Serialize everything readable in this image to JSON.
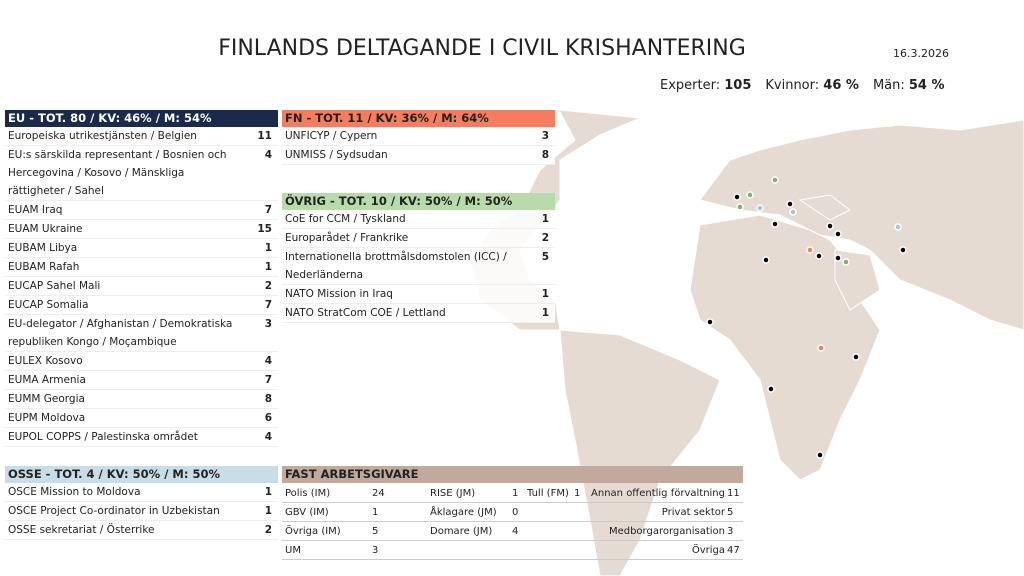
{
  "header": {
    "title": "FINLANDS DELTAGANDE I CIVIL KRISHANTERING",
    "date": "16.3.2026"
  },
  "stats": [
    {
      "label": "Experter:",
      "value": "105"
    },
    {
      "label": "Kvinnor:",
      "value": "46 %"
    },
    {
      "label": "Män:",
      "value": "54 %"
    }
  ],
  "sections": {
    "eu": {
      "title": "EU - TOT. 80 / KV: 46% / M: 54%",
      "rows": [
        [
          "Europeiska utrikestjänsten / Belgien",
          11
        ],
        [
          "EU:s särskilda representant / Bosnien och Hercegovina / Kosovo / Mänskliga rättigheter / Sahel",
          4
        ],
        [
          "EUAM Iraq",
          7
        ],
        [
          "EUAM Ukraine",
          15
        ],
        [
          "EUBAM Libya",
          1
        ],
        [
          "EUBAM Rafah",
          1
        ],
        [
          "EUCAP Sahel Mali",
          2
        ],
        [
          "EUCAP Somalia",
          7
        ],
        [
          "EU-delegator / Afghanistan / Demokratiska republiken Kongo / Moçambique",
          3
        ],
        [
          "EULEX Kosovo",
          4
        ],
        [
          "EUMA Armenia",
          7
        ],
        [
          "EUMM Georgia",
          8
        ],
        [
          "EUPM Moldova",
          6
        ],
        [
          "EUPOL COPPS / Palestinska området",
          4
        ]
      ]
    },
    "fn": {
      "title": "FN - TOT. 11 / KV: 36% / M: 64%",
      "rows": [
        [
          "UNFICYP / Cypern",
          3
        ],
        [
          "UNMISS / Sydsudan",
          8
        ]
      ]
    },
    "ovrig": {
      "title": "ÖVRIG - TOT. 10 / KV: 50% / M: 50%",
      "rows": [
        [
          "CoE for CCM / Tyskland",
          1
        ],
        [
          "Europarådet / Frankrike",
          2
        ],
        [
          "Internationella brottmålsdomstolen (ICC) / Nederländerna",
          5
        ],
        [
          "NATO Mission in Iraq",
          1
        ],
        [
          "NATO StratCom COE / Lettland",
          1
        ]
      ]
    },
    "osse": {
      "title": "OSSE - TOT. 4 / KV: 50% / M: 50%",
      "rows": [
        [
          "OSCE Mission to Moldova",
          1
        ],
        [
          "OSCE Project Co-ordinator in Uzbekistan",
          1
        ],
        [
          "OSSE sekretariat / Österrike",
          2
        ]
      ]
    }
  },
  "employers": {
    "title": "FAST ARBETSGIVARE",
    "columns": [
      [
        {
          "label": "Polis (IM)",
          "value": 24
        },
        {
          "label": "GBV (IM)",
          "value": 1
        },
        {
          "label": "Övriga (IM)",
          "value": 5
        },
        {
          "label": "UM",
          "value": 3
        }
      ],
      [
        {
          "label": "RISE (JM)",
          "value": 1
        },
        {
          "label": "Åklagare (JM)",
          "value": 0
        },
        {
          "label": "Domare (JM)",
          "value": 4
        }
      ],
      [
        {
          "label": "Tull (FM)",
          "value": 1
        }
      ],
      [
        {
          "label": "Annan offentlig förvaltning",
          "value": 11
        },
        {
          "label": "Privat sektor",
          "value": 5
        },
        {
          "label": "Medborgarorganisation",
          "value": 3
        },
        {
          "label": "Övriga",
          "value": 47
        }
      ]
    ]
  }
}
